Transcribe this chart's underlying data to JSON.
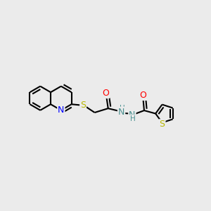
{
  "bg_color": "#ebebeb",
  "bond_color": "#000000",
  "bond_width": 1.5,
  "atom_colors": {
    "N": "#0000ff",
    "S": "#b8b800",
    "O": "#ff0000",
    "NH": "#4a9090"
  },
  "font_size": 8.5
}
